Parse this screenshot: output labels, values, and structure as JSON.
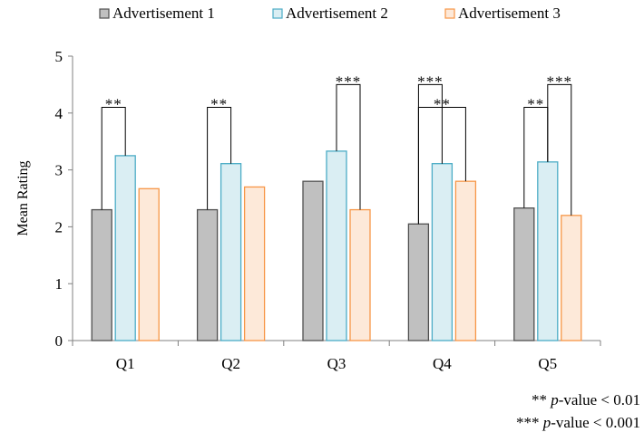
{
  "chart_data": {
    "type": "bar",
    "title": "",
    "xlabel": "",
    "ylabel": "Mean Rating",
    "ylim": [
      0,
      5
    ],
    "yticks": [
      "0",
      "1",
      "2",
      "3",
      "4",
      "5"
    ],
    "grid": false,
    "legend_position": "top",
    "categories": [
      "Q1",
      "Q2",
      "Q3",
      "Q4",
      "Q5"
    ],
    "series": [
      {
        "name": "Advertisement 1",
        "values": [
          2.3,
          2.3,
          2.8,
          2.05,
          2.33
        ],
        "fill": "#c0c0c0",
        "stroke": "#505050"
      },
      {
        "name": "Advertisement 2",
        "values": [
          3.25,
          3.11,
          3.33,
          3.11,
          3.14
        ],
        "fill": "#daeef3",
        "stroke": "#4bacc6"
      },
      {
        "name": "Advertisement 3",
        "values": [
          2.67,
          2.7,
          2.3,
          2.8,
          2.2
        ],
        "fill": "#fde9d9",
        "stroke": "#f79646"
      }
    ],
    "significance": [
      {
        "category": "Q1",
        "from_series": 0,
        "to_series": 1,
        "level": 4.1,
        "label": "**"
      },
      {
        "category": "Q2",
        "from_series": 0,
        "to_series": 1,
        "level": 4.1,
        "label": "**"
      },
      {
        "category": "Q3",
        "from_series": 1,
        "to_series": 2,
        "level": 4.5,
        "label": "***"
      },
      {
        "category": "Q4",
        "from_series": 0,
        "to_series": 1,
        "level": 4.5,
        "label": "***"
      },
      {
        "category": "Q4",
        "from_series": 0,
        "to_series": 2,
        "level": 4.1,
        "label": "**"
      },
      {
        "category": "Q5",
        "from_series": 0,
        "to_series": 1,
        "level": 4.1,
        "label": "**"
      },
      {
        "category": "Q5",
        "from_series": 1,
        "to_series": 2,
        "level": 4.5,
        "label": "***"
      }
    ],
    "notes": [
      {
        "stars": "**",
        "p": "p",
        "rest": "-value  <  0.01"
      },
      {
        "stars": "***",
        "p": "p",
        "rest": "-value  <  0.001"
      }
    ]
  }
}
